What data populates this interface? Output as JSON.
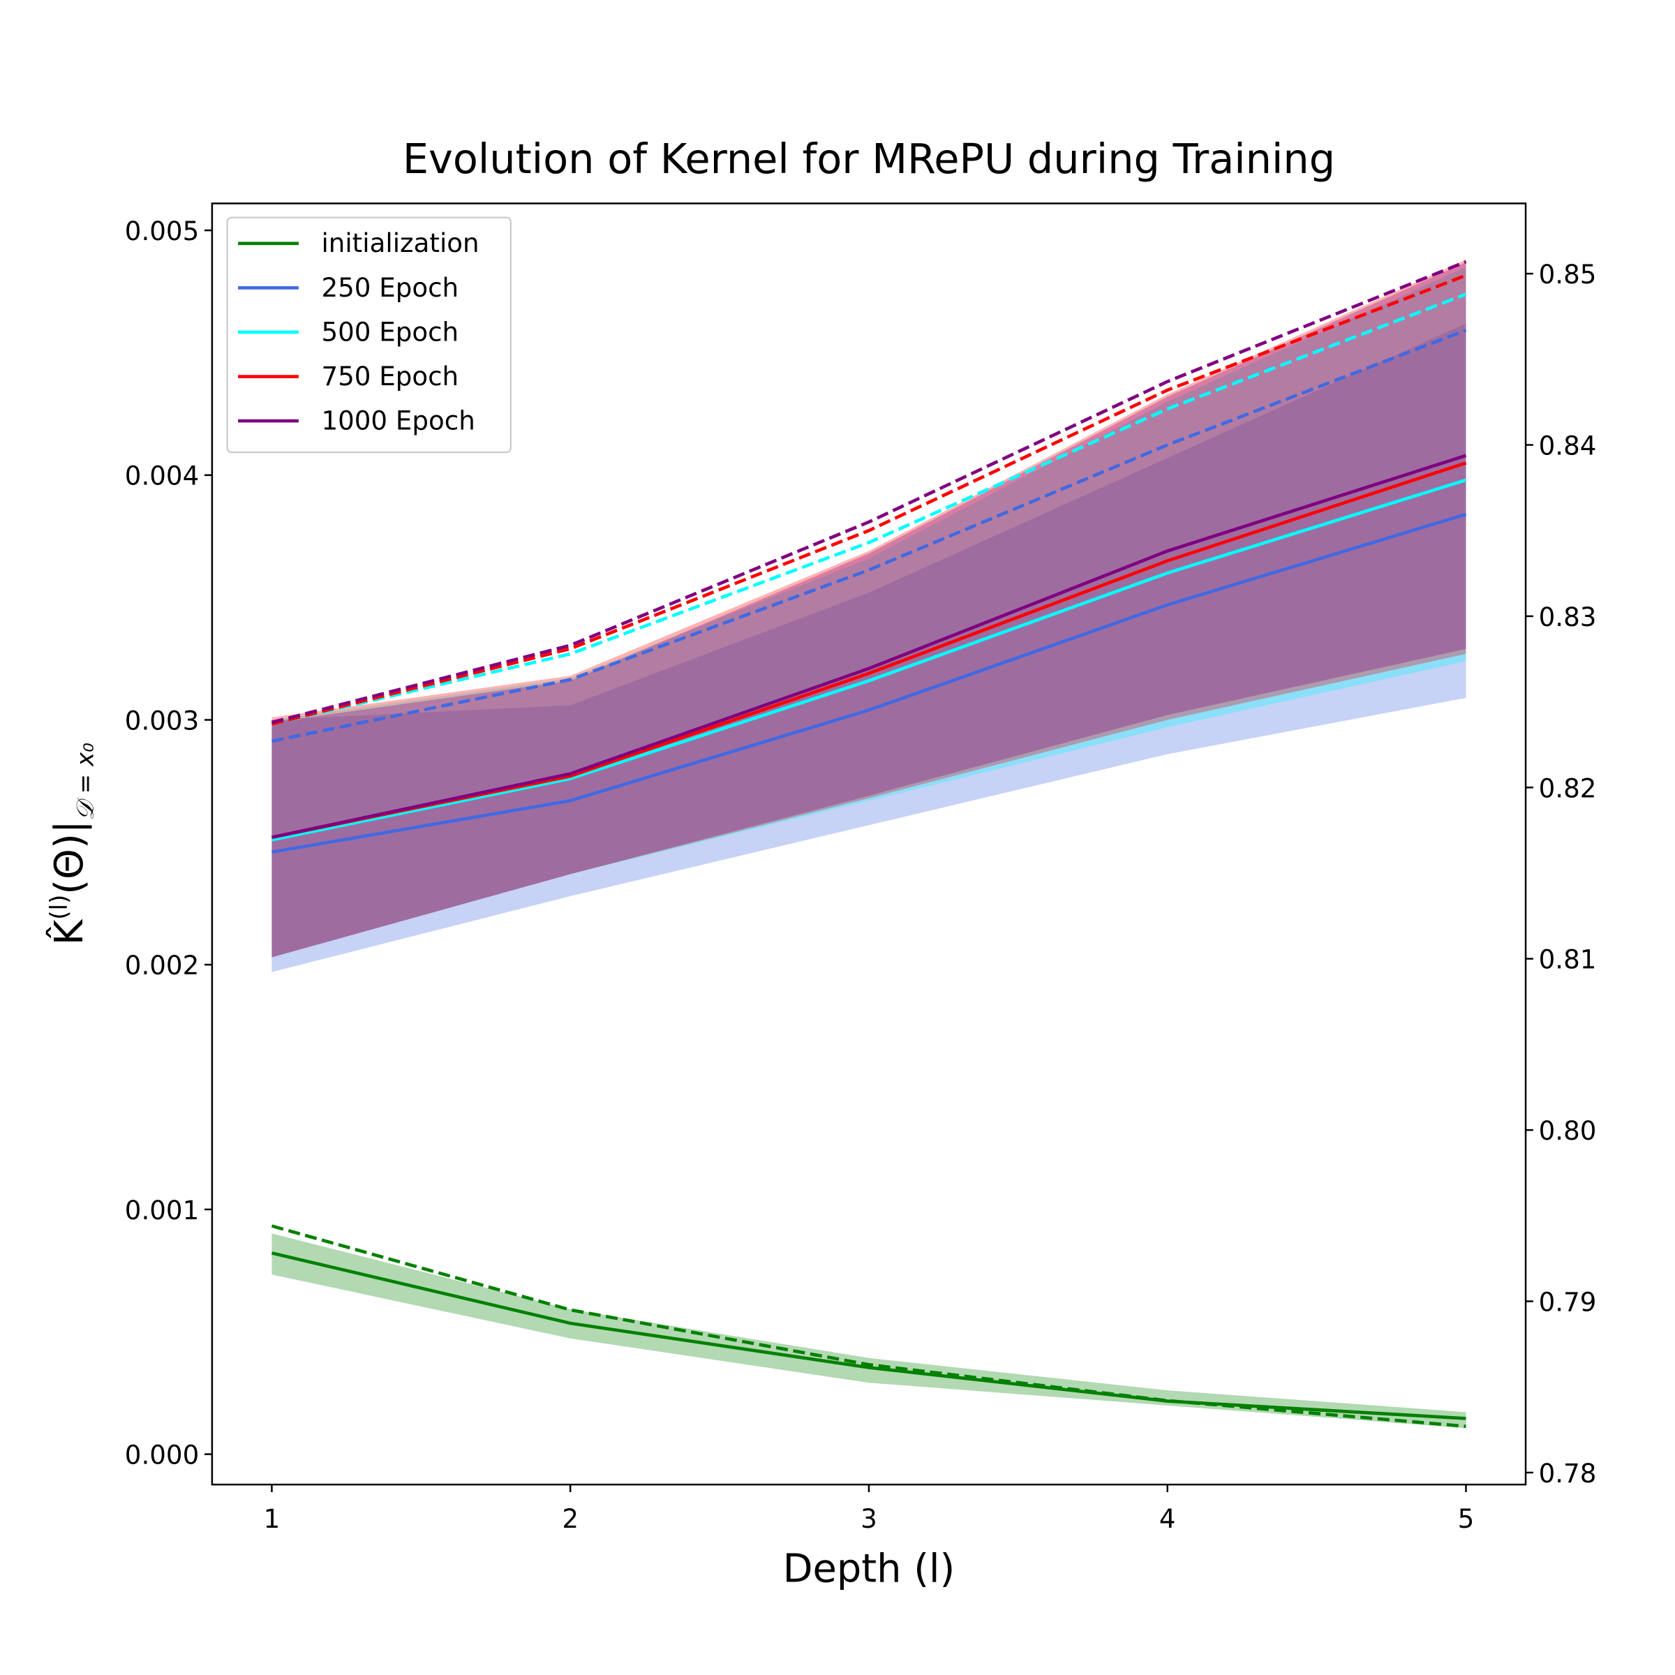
{
  "chart_data": {
    "type": "line",
    "title": "Evolution of Kernel for MRePU during Training",
    "xlabel": "Depth (l)",
    "ylabel": {
      "base": "K̂",
      "sup": "(l)",
      "body": "(Θ)|",
      "sub": "𝒟 = x₀"
    },
    "x": [
      1,
      2,
      3,
      4,
      5
    ],
    "xlim": [
      0.8,
      5.2
    ],
    "xticks": [
      1,
      2,
      3,
      4,
      5
    ],
    "ylim": [
      -0.000124,
      0.00511
    ],
    "yticks": [
      {
        "value": 0,
        "label": "0.000"
      },
      0.001,
      0.002,
      0.003,
      0.004,
      0.005
    ],
    "y2lim": [
      0.7793,
      0.8541
    ],
    "y2ticks": [
      0.78,
      0.79,
      {
        "value": 0.8,
        "label": "0.80"
      },
      0.81,
      0.82,
      0.83,
      0.84,
      0.85
    ],
    "legend": "upper left",
    "series": [
      {
        "name": "initialization",
        "color": "#008000",
        "values": [
          0.000822,
          0.000535,
          0.000354,
          0.000217,
          0.000146
        ],
        "lower": [
          0.000734,
          0.000473,
          0.000292,
          0.000199,
          0.000106
        ],
        "upper": [
          0.000902,
          0.000592,
          0.000393,
          0.000261,
          0.000172
        ],
        "y2_values": [
          0.7944,
          0.7895,
          0.7863,
          0.7842,
          0.7827
        ]
      },
      {
        "name": "250 Epoch",
        "color": "#4169e1",
        "values": [
          0.00246,
          0.00267,
          0.00304,
          0.00347,
          0.00384
        ],
        "lower": [
          0.00197,
          0.00228,
          0.00257,
          0.00286,
          0.00309
        ],
        "upper": [
          0.003,
          0.00306,
          0.00352,
          0.00407,
          0.00462
        ],
        "y2_values": [
          0.8227,
          0.8263,
          0.8327,
          0.84,
          0.8467
        ]
      },
      {
        "name": "500 Epoch",
        "color": "#00ffff",
        "values": [
          0.00251,
          0.00276,
          0.00316,
          0.0036,
          0.00398
        ],
        "lower": [
          0.00203,
          0.00237,
          0.00267,
          0.00297,
          0.00324
        ],
        "upper": [
          0.003,
          0.00317,
          0.00366,
          0.0043,
          0.00485
        ],
        "y2_values": [
          0.8237,
          0.8278,
          0.8343,
          0.8421,
          0.8488
        ]
      },
      {
        "name": "750 Epoch",
        "color": "#ff0000",
        "values": [
          0.00252,
          0.00277,
          0.00319,
          0.00365,
          0.00405
        ],
        "lower": [
          0.00203,
          0.00237,
          0.00268,
          0.003,
          0.00327
        ],
        "upper": [
          0.00301,
          0.00318,
          0.00369,
          0.00433,
          0.00488
        ],
        "y2_values": [
          0.8237,
          0.8281,
          0.835,
          0.8432,
          0.8499
        ]
      },
      {
        "name": "1000 Epoch",
        "color": "#800080",
        "values": [
          0.00252,
          0.00278,
          0.00321,
          0.00369,
          0.00408
        ],
        "lower": [
          0.00203,
          0.00237,
          0.00269,
          0.00302,
          0.00329
        ],
        "upper": [
          0.00299,
          0.00316,
          0.00368,
          0.00432,
          0.00487
        ],
        "y2_values": [
          0.8238,
          0.8283,
          0.8355,
          0.8437,
          0.8507
        ]
      }
    ]
  }
}
